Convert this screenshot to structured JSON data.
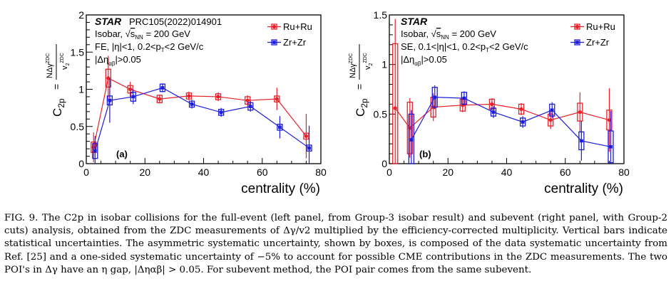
{
  "figure": {
    "panels": [
      {
        "id": "left",
        "star_label": "STAR",
        "ref_label": "PRC105(2022)014901",
        "info_lines": [
          "Isobar, √s_NN = 200 GeV",
          "FE, |η|<1, 0.2<p_T<2 GeV/c",
          "|Δη_αβ|>0.05"
        ],
        "panel_label": "(a)",
        "ylabel": "C_2p = NΔγ^ZDC / v_2^ZDC",
        "xlabel": "centrality (%)",
        "legend": [
          "Ru+Ru",
          "Zr+Zr"
        ]
      },
      {
        "id": "right",
        "star_label": "STAR",
        "ref_label": "",
        "info_lines": [
          "Isobar, √s_NN = 200 GeV",
          "SE, 0.1<|η|<1, 0.2<p_T<2 GeV/c",
          "|Δη_αβ|>0.05"
        ],
        "panel_label": "(b)",
        "ylabel": "C_2p = NΔγ^ZDC / v_2^ZDC",
        "xlabel": "centrality (%)",
        "legend": [
          "Ru+Ru",
          "Zr+Zr"
        ]
      }
    ]
  },
  "chart_data": [
    {
      "type": "scatter",
      "xlabel": "centrality (%)",
      "ylabel": "C2p",
      "xlim": [
        0,
        80
      ],
      "ylim": [
        0,
        2
      ],
      "x_ticks": [
        0,
        20,
        40,
        60,
        80
      ],
      "y_ticks": [
        0,
        0.5,
        1,
        1.5,
        2
      ],
      "legend_position": "top-right",
      "series": [
        {
          "name": "Ru+Ru",
          "color": "#e8202a",
          "x": [
            2.5,
            7.5,
            15,
            25,
            35,
            45,
            55,
            65,
            75
          ],
          "y": [
            0.22,
            1.15,
            1.0,
            0.87,
            0.91,
            0.9,
            0.85,
            0.87,
            0.37
          ],
          "stat": [
            0.2,
            0.3,
            0.1,
            0.06,
            0.06,
            0.06,
            0.07,
            0.15,
            0.3
          ],
          "sys": [
            0.07,
            0.12,
            0.05,
            0.05,
            0.04,
            0.04,
            0.05,
            0.04,
            0.04
          ]
        },
        {
          "name": "Zr+Zr",
          "color": "#1c1cdc",
          "x": [
            3,
            8,
            16,
            26,
            36,
            46,
            56,
            66,
            76
          ],
          "y": [
            0.17,
            0.85,
            0.9,
            1.02,
            0.8,
            0.69,
            0.77,
            0.49,
            0.21
          ],
          "stat": [
            0.2,
            0.3,
            0.1,
            0.06,
            0.06,
            0.06,
            0.07,
            0.15,
            0.3
          ],
          "sys": [
            0.1,
            0.06,
            0.06,
            0.05,
            0.04,
            0.04,
            0.05,
            0.04,
            0.04
          ]
        }
      ]
    },
    {
      "type": "scatter",
      "xlabel": "centrality (%)",
      "ylabel": "C2p",
      "xlim": [
        0,
        80
      ],
      "ylim": [
        0,
        1.5
      ],
      "x_ticks": [
        0,
        20,
        40,
        60,
        80
      ],
      "y_ticks": [
        0,
        0.5,
        1,
        1.5
      ],
      "legend_position": "top-right",
      "series": [
        {
          "name": "Ru+Ru",
          "color": "#e8202a",
          "x": [
            2,
            7,
            15,
            25,
            35,
            45,
            55,
            65,
            75
          ],
          "y": [
            0.56,
            0.36,
            0.57,
            0.59,
            0.6,
            0.55,
            0.44,
            0.52,
            0.44
          ],
          "stat": [
            0.9,
            0.3,
            0.14,
            0.07,
            0.06,
            0.06,
            0.09,
            0.2,
            0.32
          ],
          "sys": [
            0.65,
            0.26,
            0.1,
            0.06,
            0.05,
            0.05,
            0.06,
            0.09,
            0.1
          ]
        },
        {
          "name": "Zr+Zr",
          "color": "#1c1cdc",
          "x": [
            7.5,
            15.5,
            25.5,
            35.5,
            45.5,
            55.5,
            65.5,
            75.5
          ],
          "y": [
            0.24,
            0.67,
            0.66,
            0.52,
            0.42,
            0.54,
            0.23,
            0.17
          ],
          "stat": [
            0.3,
            0.12,
            0.07,
            0.06,
            0.06,
            0.08,
            0.2,
            0.36
          ],
          "sys": [
            0.26,
            0.1,
            0.06,
            0.04,
            0.04,
            0.06,
            0.09,
            0.16
          ]
        }
      ]
    }
  ],
  "caption": {
    "fig_label": "FIG. 9.",
    "text": "The C2p in isobar collisions for the full-event (left panel, from Group-3 isobar result) and subevent (right panel, with Group-2 cuts) analysis, obtained from the ZDC measurements of Δγ/v2 multiplied by the efficiency-corrected multiplicity. Vertical bars indicate statistical uncertainties. The asymmetric systematic uncertainty, shown by boxes, is composed of the data systematic uncertainty from Ref. [25] and a one-sided systematic uncertainty of −5% to account for possible CME contributions in the ZDC measurements. The two POI's in Δγ have an η gap, |Δηαβ| > 0.05. For subevent method, the POI pair comes from the same subevent."
  }
}
